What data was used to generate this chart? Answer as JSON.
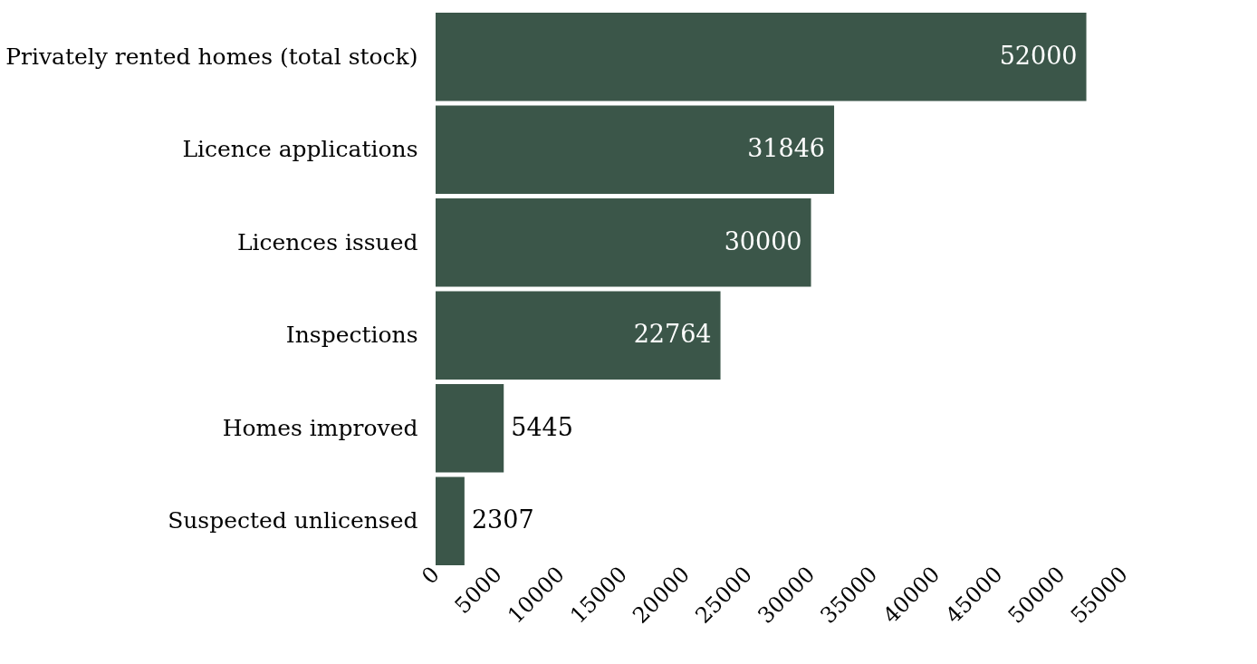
{
  "chart_data": {
    "type": "bar",
    "orientation": "horizontal",
    "categories": [
      "Privately rented homes (total stock)",
      "Licence applications",
      "Licences issued",
      "Inspections",
      "Homes improved",
      "Suspected unlicensed"
    ],
    "values": [
      52000,
      31846,
      30000,
      22764,
      5445,
      2307
    ],
    "color": "#3b5649",
    "xlim": [
      0,
      55000
    ],
    "xticks": [
      0,
      5000,
      10000,
      15000,
      20000,
      25000,
      30000,
      35000,
      40000,
      45000,
      50000,
      55000
    ],
    "data_labels": true,
    "grid": false
  }
}
